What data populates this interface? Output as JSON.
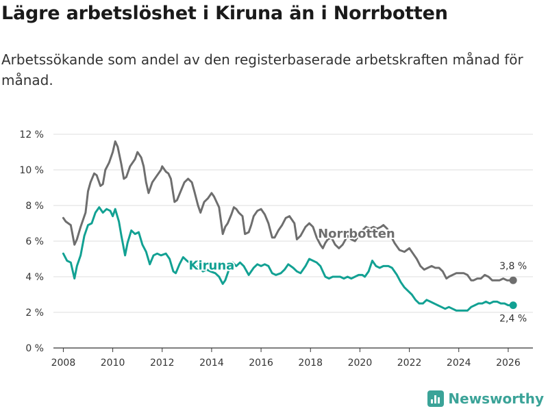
{
  "title": "Lägre arbetslöshet i Kiruna än i Norrbotten",
  "subtitle": "Arbetssökande som andel av den registerbaserade arbetskraften månad för månad.",
  "brand": {
    "name": "Newsworthy",
    "icon": "bar-chart-icon"
  },
  "colors": {
    "norrbotten": "#6e6e6e",
    "kiruna": "#12a193",
    "grid": "#dcdcdc",
    "axis": "#333333",
    "brand": "#3ba398"
  },
  "chart_data": {
    "type": "line",
    "title": "Lägre arbetslöshet i Kiruna än i Norrbotten",
    "xlabel": "",
    "ylabel": "",
    "xlim": [
      2007.6,
      2027.0
    ],
    "ylim": [
      0,
      12
    ],
    "x_ticks": [
      2008,
      2010,
      2012,
      2014,
      2016,
      2018,
      2020,
      2022,
      2024,
      2026
    ],
    "y_ticks": [
      0,
      2,
      4,
      6,
      8,
      10,
      12
    ],
    "y_tick_labels": [
      "0 %",
      "2 %",
      "4 %",
      "6 %",
      "8 %",
      "10 %",
      "12 %"
    ],
    "grid": "horizontal",
    "series": [
      {
        "name": "Norrbotten",
        "label": "Norrbotten",
        "end_label": "3,8 %",
        "x": [
          2008.0,
          2008.1,
          2008.3,
          2008.45,
          2008.55,
          2008.7,
          2008.9,
          2009.0,
          2009.1,
          2009.25,
          2009.35,
          2009.5,
          2009.6,
          2009.7,
          2009.85,
          2010.0,
          2010.1,
          2010.2,
          2010.35,
          2010.45,
          2010.55,
          2010.7,
          2010.9,
          2011.0,
          2011.15,
          2011.25,
          2011.35,
          2011.45,
          2011.6,
          2011.8,
          2011.95,
          2012.0,
          2012.15,
          2012.25,
          2012.35,
          2012.5,
          2012.6,
          2012.75,
          2012.9,
          2013.05,
          2013.2,
          2013.3,
          2013.45,
          2013.55,
          2013.7,
          2013.85,
          2014.0,
          2014.1,
          2014.3,
          2014.45,
          2014.55,
          2014.65,
          2014.8,
          2014.9,
          2015.0,
          2015.1,
          2015.25,
          2015.35,
          2015.5,
          2015.6,
          2015.7,
          2015.85,
          2016.0,
          2016.15,
          2016.3,
          2016.45,
          2016.55,
          2016.7,
          2016.85,
          2017.0,
          2017.15,
          2017.35,
          2017.45,
          2017.6,
          2017.8,
          2017.95,
          2018.1,
          2018.25,
          2018.4,
          2018.5,
          2018.6,
          2018.7,
          2018.85,
          2019.0,
          2019.15,
          2019.3,
          2019.5,
          2019.65,
          2019.8,
          2019.95,
          2020.1,
          2020.25,
          2020.4,
          2020.55,
          2020.7,
          2020.85,
          2020.95,
          2021.1,
          2021.25,
          2021.4,
          2021.5,
          2021.6,
          2021.8,
          2022.0,
          2022.15,
          2022.3,
          2022.45,
          2022.6,
          2022.75,
          2022.9,
          2023.05,
          2023.2,
          2023.35,
          2023.5,
          2023.6,
          2023.75,
          2023.9,
          2024.05,
          2024.2,
          2024.35,
          2024.5,
          2024.6,
          2024.75,
          2024.9,
          2025.05,
          2025.2,
          2025.35,
          2025.5,
          2025.65,
          2025.8,
          2025.95,
          2026.05,
          2026.2
        ],
        "values": [
          7.3,
          7.1,
          6.9,
          5.8,
          6.1,
          6.8,
          7.6,
          8.8,
          9.3,
          9.8,
          9.7,
          9.1,
          9.2,
          10.0,
          10.4,
          11.0,
          11.6,
          11.3,
          10.3,
          9.5,
          9.6,
          10.2,
          10.6,
          11.0,
          10.7,
          10.2,
          9.3,
          8.7,
          9.3,
          9.7,
          10.0,
          10.2,
          9.9,
          9.8,
          9.5,
          8.2,
          8.3,
          8.8,
          9.3,
          9.5,
          9.3,
          8.8,
          8.0,
          7.6,
          8.2,
          8.4,
          8.7,
          8.5,
          7.9,
          6.4,
          6.8,
          7.0,
          7.5,
          7.9,
          7.8,
          7.6,
          7.4,
          6.4,
          6.5,
          6.9,
          7.4,
          7.7,
          7.8,
          7.5,
          7.0,
          6.2,
          6.2,
          6.6,
          6.9,
          7.3,
          7.4,
          7.0,
          6.1,
          6.3,
          6.8,
          7.0,
          6.8,
          6.2,
          5.8,
          5.6,
          5.9,
          6.1,
          6.2,
          5.8,
          5.6,
          5.8,
          6.3,
          6.1,
          6.0,
          6.3,
          6.6,
          6.8,
          6.7,
          6.8,
          6.7,
          6.8,
          6.9,
          6.7,
          6.3,
          5.9,
          5.7,
          5.5,
          5.4,
          5.6,
          5.3,
          5.0,
          4.6,
          4.4,
          4.5,
          4.6,
          4.5,
          4.5,
          4.3,
          3.9,
          4.0,
          4.1,
          4.2,
          4.2,
          4.2,
          4.1,
          3.8,
          3.8,
          3.9,
          3.9,
          4.1,
          4.0,
          3.8,
          3.8,
          3.8,
          3.9,
          3.8,
          3.8,
          3.8
        ],
        "color": "#6e6e6e"
      },
      {
        "name": "Kiruna",
        "label": "Kiruna",
        "end_label": "2,4 %",
        "x": [
          2008.0,
          2008.15,
          2008.3,
          2008.45,
          2008.55,
          2008.7,
          2008.85,
          2009.0,
          2009.15,
          2009.3,
          2009.45,
          2009.6,
          2009.75,
          2009.9,
          2010.0,
          2010.1,
          2010.25,
          2010.35,
          2010.5,
          2010.6,
          2010.75,
          2010.9,
          2011.05,
          2011.2,
          2011.35,
          2011.5,
          2011.65,
          2011.8,
          2011.95,
          2012.15,
          2012.3,
          2012.45,
          2012.55,
          2012.7,
          2012.85,
          2013.0,
          2013.2,
          2013.35,
          2013.5,
          2013.65,
          2013.8,
          2013.95,
          2014.15,
          2014.3,
          2014.45,
          2014.55,
          2014.7,
          2014.85,
          2015.0,
          2015.15,
          2015.3,
          2015.5,
          2015.7,
          2015.85,
          2016.0,
          2016.15,
          2016.3,
          2016.45,
          2016.6,
          2016.8,
          2016.95,
          2017.1,
          2017.3,
          2017.45,
          2017.6,
          2017.8,
          2017.95,
          2018.1,
          2018.25,
          2018.4,
          2018.5,
          2018.6,
          2018.75,
          2018.9,
          2019.05,
          2019.2,
          2019.35,
          2019.5,
          2019.65,
          2019.8,
          2019.95,
          2020.1,
          2020.2,
          2020.35,
          2020.5,
          2020.65,
          2020.8,
          2020.95,
          2021.15,
          2021.3,
          2021.5,
          2021.65,
          2021.8,
          2021.95,
          2022.1,
          2022.25,
          2022.4,
          2022.55,
          2022.7,
          2022.85,
          2023.0,
          2023.15,
          2023.3,
          2023.45,
          2023.6,
          2023.75,
          2023.9,
          2024.05,
          2024.2,
          2024.35,
          2024.5,
          2024.65,
          2024.8,
          2024.95,
          2025.1,
          2025.25,
          2025.4,
          2025.55,
          2025.7,
          2025.85,
          2026.0,
          2026.2
        ],
        "values": [
          5.3,
          4.9,
          4.8,
          3.9,
          4.6,
          5.2,
          6.3,
          6.9,
          7.0,
          7.6,
          7.9,
          7.6,
          7.8,
          7.7,
          7.4,
          7.8,
          7.1,
          6.3,
          5.2,
          5.9,
          6.6,
          6.4,
          6.5,
          5.8,
          5.4,
          4.7,
          5.2,
          5.3,
          5.2,
          5.3,
          5.0,
          4.3,
          4.2,
          4.7,
          5.1,
          4.9,
          4.7,
          4.6,
          4.5,
          4.3,
          4.4,
          4.3,
          4.2,
          4.0,
          3.6,
          3.8,
          4.4,
          4.8,
          4.6,
          4.8,
          4.6,
          4.1,
          4.5,
          4.7,
          4.6,
          4.7,
          4.6,
          4.2,
          4.1,
          4.2,
          4.4,
          4.7,
          4.5,
          4.3,
          4.2,
          4.6,
          5.0,
          4.9,
          4.8,
          4.6,
          4.3,
          4.0,
          3.9,
          4.0,
          4.0,
          4.0,
          3.9,
          4.0,
          3.9,
          4.0,
          4.1,
          4.1,
          4.0,
          4.3,
          4.9,
          4.6,
          4.5,
          4.6,
          4.6,
          4.5,
          4.1,
          3.7,
          3.4,
          3.2,
          3.0,
          2.7,
          2.5,
          2.5,
          2.7,
          2.6,
          2.5,
          2.4,
          2.3,
          2.2,
          2.3,
          2.2,
          2.1,
          2.1,
          2.1,
          2.1,
          2.3,
          2.4,
          2.5,
          2.5,
          2.6,
          2.5,
          2.6,
          2.6,
          2.5,
          2.5,
          2.4,
          2.4
        ],
        "color": "#12a193"
      }
    ]
  }
}
